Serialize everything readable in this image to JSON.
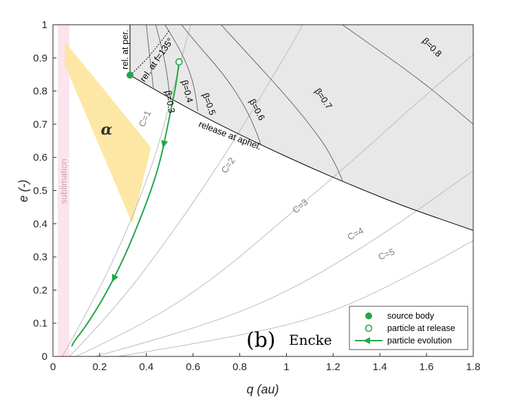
{
  "chart_data": {
    "type": "line",
    "title": "",
    "panel_mark": "(b)",
    "panel_name": "Encke",
    "xlabel": "q (au)",
    "ylabel": "e (-)",
    "xlim": [
      0,
      1.8
    ],
    "ylim": [
      0,
      1
    ],
    "xticks": [
      0,
      0.2,
      0.4,
      0.6,
      0.8,
      1,
      1.2,
      1.4,
      1.6,
      1.8
    ],
    "xtick_labels": [
      "0",
      "0.2",
      "0.4",
      "0.6",
      "0.8",
      "1",
      "1.2",
      "1.4",
      "1.6",
      "1.8"
    ],
    "yticks": [
      0,
      0.1,
      0.2,
      0.3,
      0.4,
      0.5,
      0.6,
      0.7,
      0.8,
      0.9,
      1
    ],
    "ytick_labels": [
      "0",
      "0.1",
      "0.2",
      "0.3",
      "0.4",
      "0.5",
      "0.6",
      "0.7",
      "0.8",
      "0.9",
      "1"
    ],
    "sublimation": {
      "label": "sublimation",
      "q_range": [
        0.02,
        0.07
      ],
      "color": "#fce4ef",
      "label_color": "#c8a6b6"
    },
    "alpha_region": {
      "label": "α",
      "color": "#fde49a",
      "points": [
        [
          0.05,
          0.95
        ],
        [
          0.42,
          0.63
        ],
        [
          0.34,
          0.4
        ],
        [
          0.05,
          0.88
        ]
      ]
    },
    "source_body": {
      "q": 0.33,
      "e": 0.848
    },
    "release_point": {
      "q": 0.54,
      "e": 0.888
    },
    "release_curves": [
      {
        "label": "release at aphel.",
        "points": [
          [
            0.33,
            0.848
          ],
          [
            0.5,
            0.778
          ],
          [
            0.7,
            0.703
          ],
          [
            0.9,
            0.635
          ],
          [
            1.1,
            0.57
          ],
          [
            1.3,
            0.51
          ],
          [
            1.5,
            0.453
          ],
          [
            1.8,
            0.38
          ]
        ]
      },
      {
        "label": "rel. at per.",
        "points": [
          [
            0.33,
            0.848
          ],
          [
            0.33,
            1.0
          ]
        ]
      },
      {
        "label": "rel. at f=135°",
        "points": [
          [
            0.33,
            0.848
          ],
          [
            0.38,
            0.88
          ],
          [
            0.43,
            0.92
          ],
          [
            0.48,
            0.965
          ],
          [
            0.5,
            0.985
          ]
        ]
      }
    ],
    "beta_curves": [
      {
        "label": "β=0.3",
        "points": [
          [
            0.43,
            0.81
          ],
          [
            0.42,
            0.87
          ],
          [
            0.41,
            0.93
          ],
          [
            0.4,
            1.0
          ]
        ]
      },
      {
        "label": "β=0.4",
        "points": [
          [
            0.5,
            0.785
          ],
          [
            0.49,
            0.85
          ],
          [
            0.47,
            0.92
          ],
          [
            0.44,
            1.0
          ]
        ]
      },
      {
        "label": "β=0.5",
        "points": [
          [
            0.62,
            0.74
          ],
          [
            0.61,
            0.8
          ],
          [
            0.58,
            0.87
          ],
          [
            0.54,
            0.93
          ],
          [
            0.48,
            1.0
          ]
        ]
      },
      {
        "label": "β=0.6",
        "points": [
          [
            0.89,
            0.64
          ],
          [
            0.86,
            0.7
          ],
          [
            0.8,
            0.78
          ],
          [
            0.72,
            0.86
          ],
          [
            0.62,
            0.94
          ],
          [
            0.55,
            1.0
          ]
        ]
      },
      {
        "label": "β=0.7",
        "points": [
          [
            1.24,
            0.53
          ],
          [
            1.2,
            0.6
          ],
          [
            1.1,
            0.7
          ],
          [
            0.98,
            0.8
          ],
          [
            0.85,
            0.9
          ],
          [
            0.72,
            1.0
          ]
        ]
      },
      {
        "label": "β=0.8",
        "points": [
          [
            1.8,
            0.7
          ],
          [
            1.65,
            0.79
          ],
          [
            1.52,
            0.86
          ],
          [
            1.4,
            0.92
          ],
          [
            1.24,
            1.0
          ]
        ]
      }
    ],
    "c_curves": [
      {
        "label": "C=1",
        "points": [
          [
            0.04,
            0.0
          ],
          [
            0.16,
            0.15
          ],
          [
            0.3,
            0.35
          ],
          [
            0.44,
            0.6
          ],
          [
            0.52,
            0.82
          ],
          [
            0.59,
            1.0
          ]
        ]
      },
      {
        "label": "C=2",
        "points": [
          [
            0.07,
            0.0
          ],
          [
            0.25,
            0.13
          ],
          [
            0.5,
            0.36
          ],
          [
            0.75,
            0.62
          ],
          [
            0.99,
            0.9
          ],
          [
            1.07,
            1.0
          ]
        ]
      },
      {
        "label": "C=3",
        "points": [
          [
            0.1,
            0.0
          ],
          [
            0.4,
            0.1
          ],
          [
            0.7,
            0.24
          ],
          [
            1.0,
            0.42
          ],
          [
            1.3,
            0.6
          ],
          [
            1.55,
            0.76
          ],
          [
            1.8,
            0.91
          ]
        ]
      },
      {
        "label": "C=4",
        "points": [
          [
            0.18,
            0.0
          ],
          [
            0.6,
            0.08
          ],
          [
            1.0,
            0.19
          ],
          [
            1.4,
            0.36
          ],
          [
            1.8,
            0.56
          ]
        ]
      },
      {
        "label": "C=5",
        "points": [
          [
            0.28,
            0.0
          ],
          [
            0.8,
            0.06
          ],
          [
            1.2,
            0.13
          ],
          [
            1.6,
            0.27
          ],
          [
            1.8,
            0.35
          ]
        ]
      }
    ],
    "particle_evolution": {
      "points": [
        [
          0.54,
          0.888
        ],
        [
          0.53,
          0.83
        ],
        [
          0.51,
          0.76
        ],
        [
          0.49,
          0.69
        ],
        [
          0.46,
          0.59
        ],
        [
          0.42,
          0.5
        ],
        [
          0.36,
          0.39
        ],
        [
          0.3,
          0.29
        ],
        [
          0.22,
          0.18
        ],
        [
          0.14,
          0.09
        ],
        [
          0.09,
          0.045
        ],
        [
          0.08,
          0.03
        ]
      ]
    },
    "legend": [
      {
        "label": "source body",
        "marker": "filled-circle"
      },
      {
        "label": "particle at release",
        "marker": "open-circle"
      },
      {
        "label": "particle evolution",
        "marker": "arrow-line"
      }
    ],
    "colors": {
      "green": "#21a64a",
      "shade": "#e8e8e8",
      "curve": "#4d4d4d",
      "c_curve": "#bcbcbc"
    }
  }
}
